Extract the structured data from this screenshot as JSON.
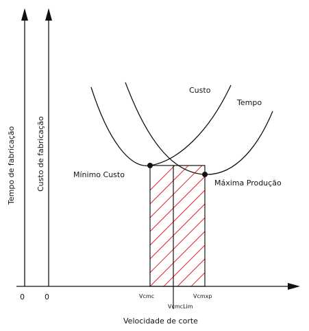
{
  "axes": {
    "y1_label": "Tempo de fabricação",
    "y2_label": "Custo de fabricação",
    "x_label": "Velocidade de corte",
    "origin_1": "0",
    "origin_2": "0"
  },
  "curves": {
    "cost_label": "Custo",
    "time_label": "Tempo"
  },
  "points": {
    "min_cost_label": "Mínimo Custo",
    "max_prod_label": "Máxima Produção"
  },
  "ticks": {
    "vcmc": "Vcmc",
    "vcmclim": "VcmcLim",
    "vcmxp": "Vcmxp"
  },
  "colors": {
    "hatch": "#e0262a",
    "ink": "#111111"
  }
}
